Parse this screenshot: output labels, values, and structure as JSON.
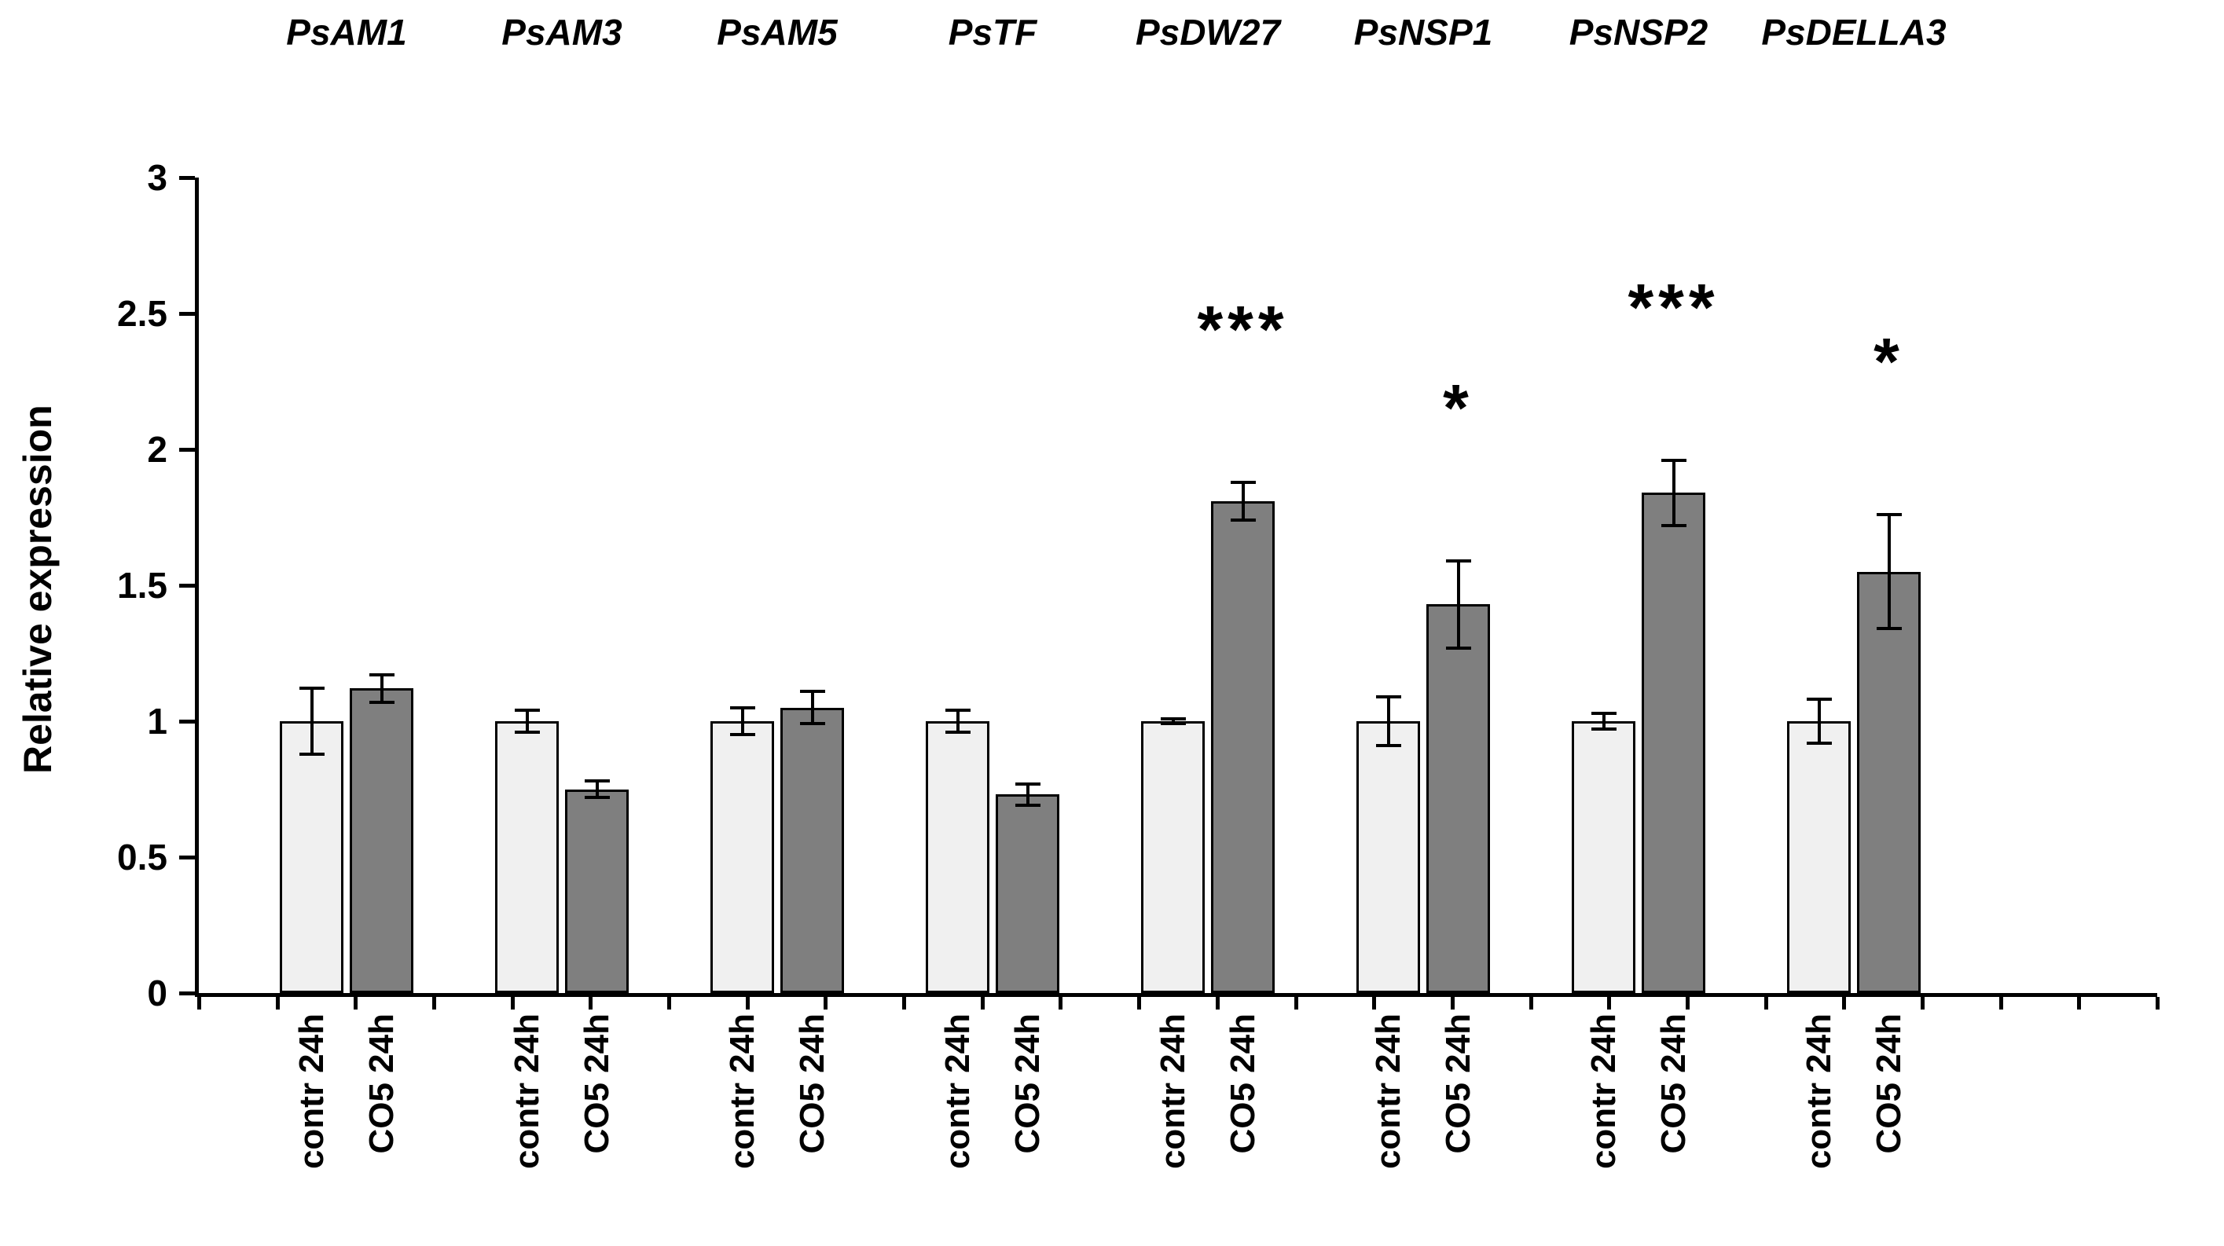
{
  "chart_data": {
    "type": "bar",
    "title": "",
    "ylabel": "Relative expression",
    "xlabel": "",
    "ylim": [
      0,
      3
    ],
    "ytick_labels": [
      "0",
      "0.5",
      "1",
      "1.5",
      "2",
      "2.5",
      "3"
    ],
    "series_labels": [
      "contr 24h",
      "CO5 24h"
    ],
    "legend_position": "none",
    "grid": false,
    "colors": {
      "contr_fill": "#f0f0f0",
      "co5_fill": "#7f7f7f",
      "bar_border": "#000000",
      "axis": "#000000",
      "text": "#000000"
    },
    "groups": [
      {
        "gene": "PsAM1",
        "bars": [
          {
            "label": "contr 24h",
            "value": 1.0,
            "error": 0.12
          },
          {
            "label": "CO5 24h",
            "value": 1.12,
            "error": 0.05
          }
        ],
        "significance": ""
      },
      {
        "gene": "PsAM3",
        "bars": [
          {
            "label": "contr 24h",
            "value": 1.0,
            "error": 0.04
          },
          {
            "label": "CO5 24h",
            "value": 0.75,
            "error": 0.03
          }
        ],
        "significance": ""
      },
      {
        "gene": "PsAM5",
        "bars": [
          {
            "label": "contr 24h",
            "value": 1.0,
            "error": 0.05
          },
          {
            "label": "CO5 24h",
            "value": 1.05,
            "error": 0.06
          }
        ],
        "significance": ""
      },
      {
        "gene": "PsTF",
        "bars": [
          {
            "label": "contr 24h",
            "value": 1.0,
            "error": 0.04
          },
          {
            "label": "CO5 24h",
            "value": 0.73,
            "error": 0.04
          }
        ],
        "significance": ""
      },
      {
        "gene": "PsDW27",
        "bars": [
          {
            "label": "contr 24h",
            "value": 1.0,
            "error": 0.01
          },
          {
            "label": "CO5 24h",
            "value": 1.81,
            "error": 0.07
          }
        ],
        "significance": "***"
      },
      {
        "gene": "PsNSP1",
        "bars": [
          {
            "label": "contr 24h",
            "value": 1.0,
            "error": 0.09
          },
          {
            "label": "CO5 24h",
            "value": 1.43,
            "error": 0.16
          }
        ],
        "significance": "*"
      },
      {
        "gene": "PsNSP2",
        "bars": [
          {
            "label": "contr 24h",
            "value": 1.0,
            "error": 0.03
          },
          {
            "label": "CO5 24h",
            "value": 1.84,
            "error": 0.12
          }
        ],
        "significance": "***"
      },
      {
        "gene": "PsDELLA3",
        "bars": [
          {
            "label": "contr 24h",
            "value": 1.0,
            "error": 0.08
          },
          {
            "label": "CO5 24h",
            "value": 1.55,
            "error": 0.21
          }
        ],
        "significance": "*"
      }
    ]
  }
}
